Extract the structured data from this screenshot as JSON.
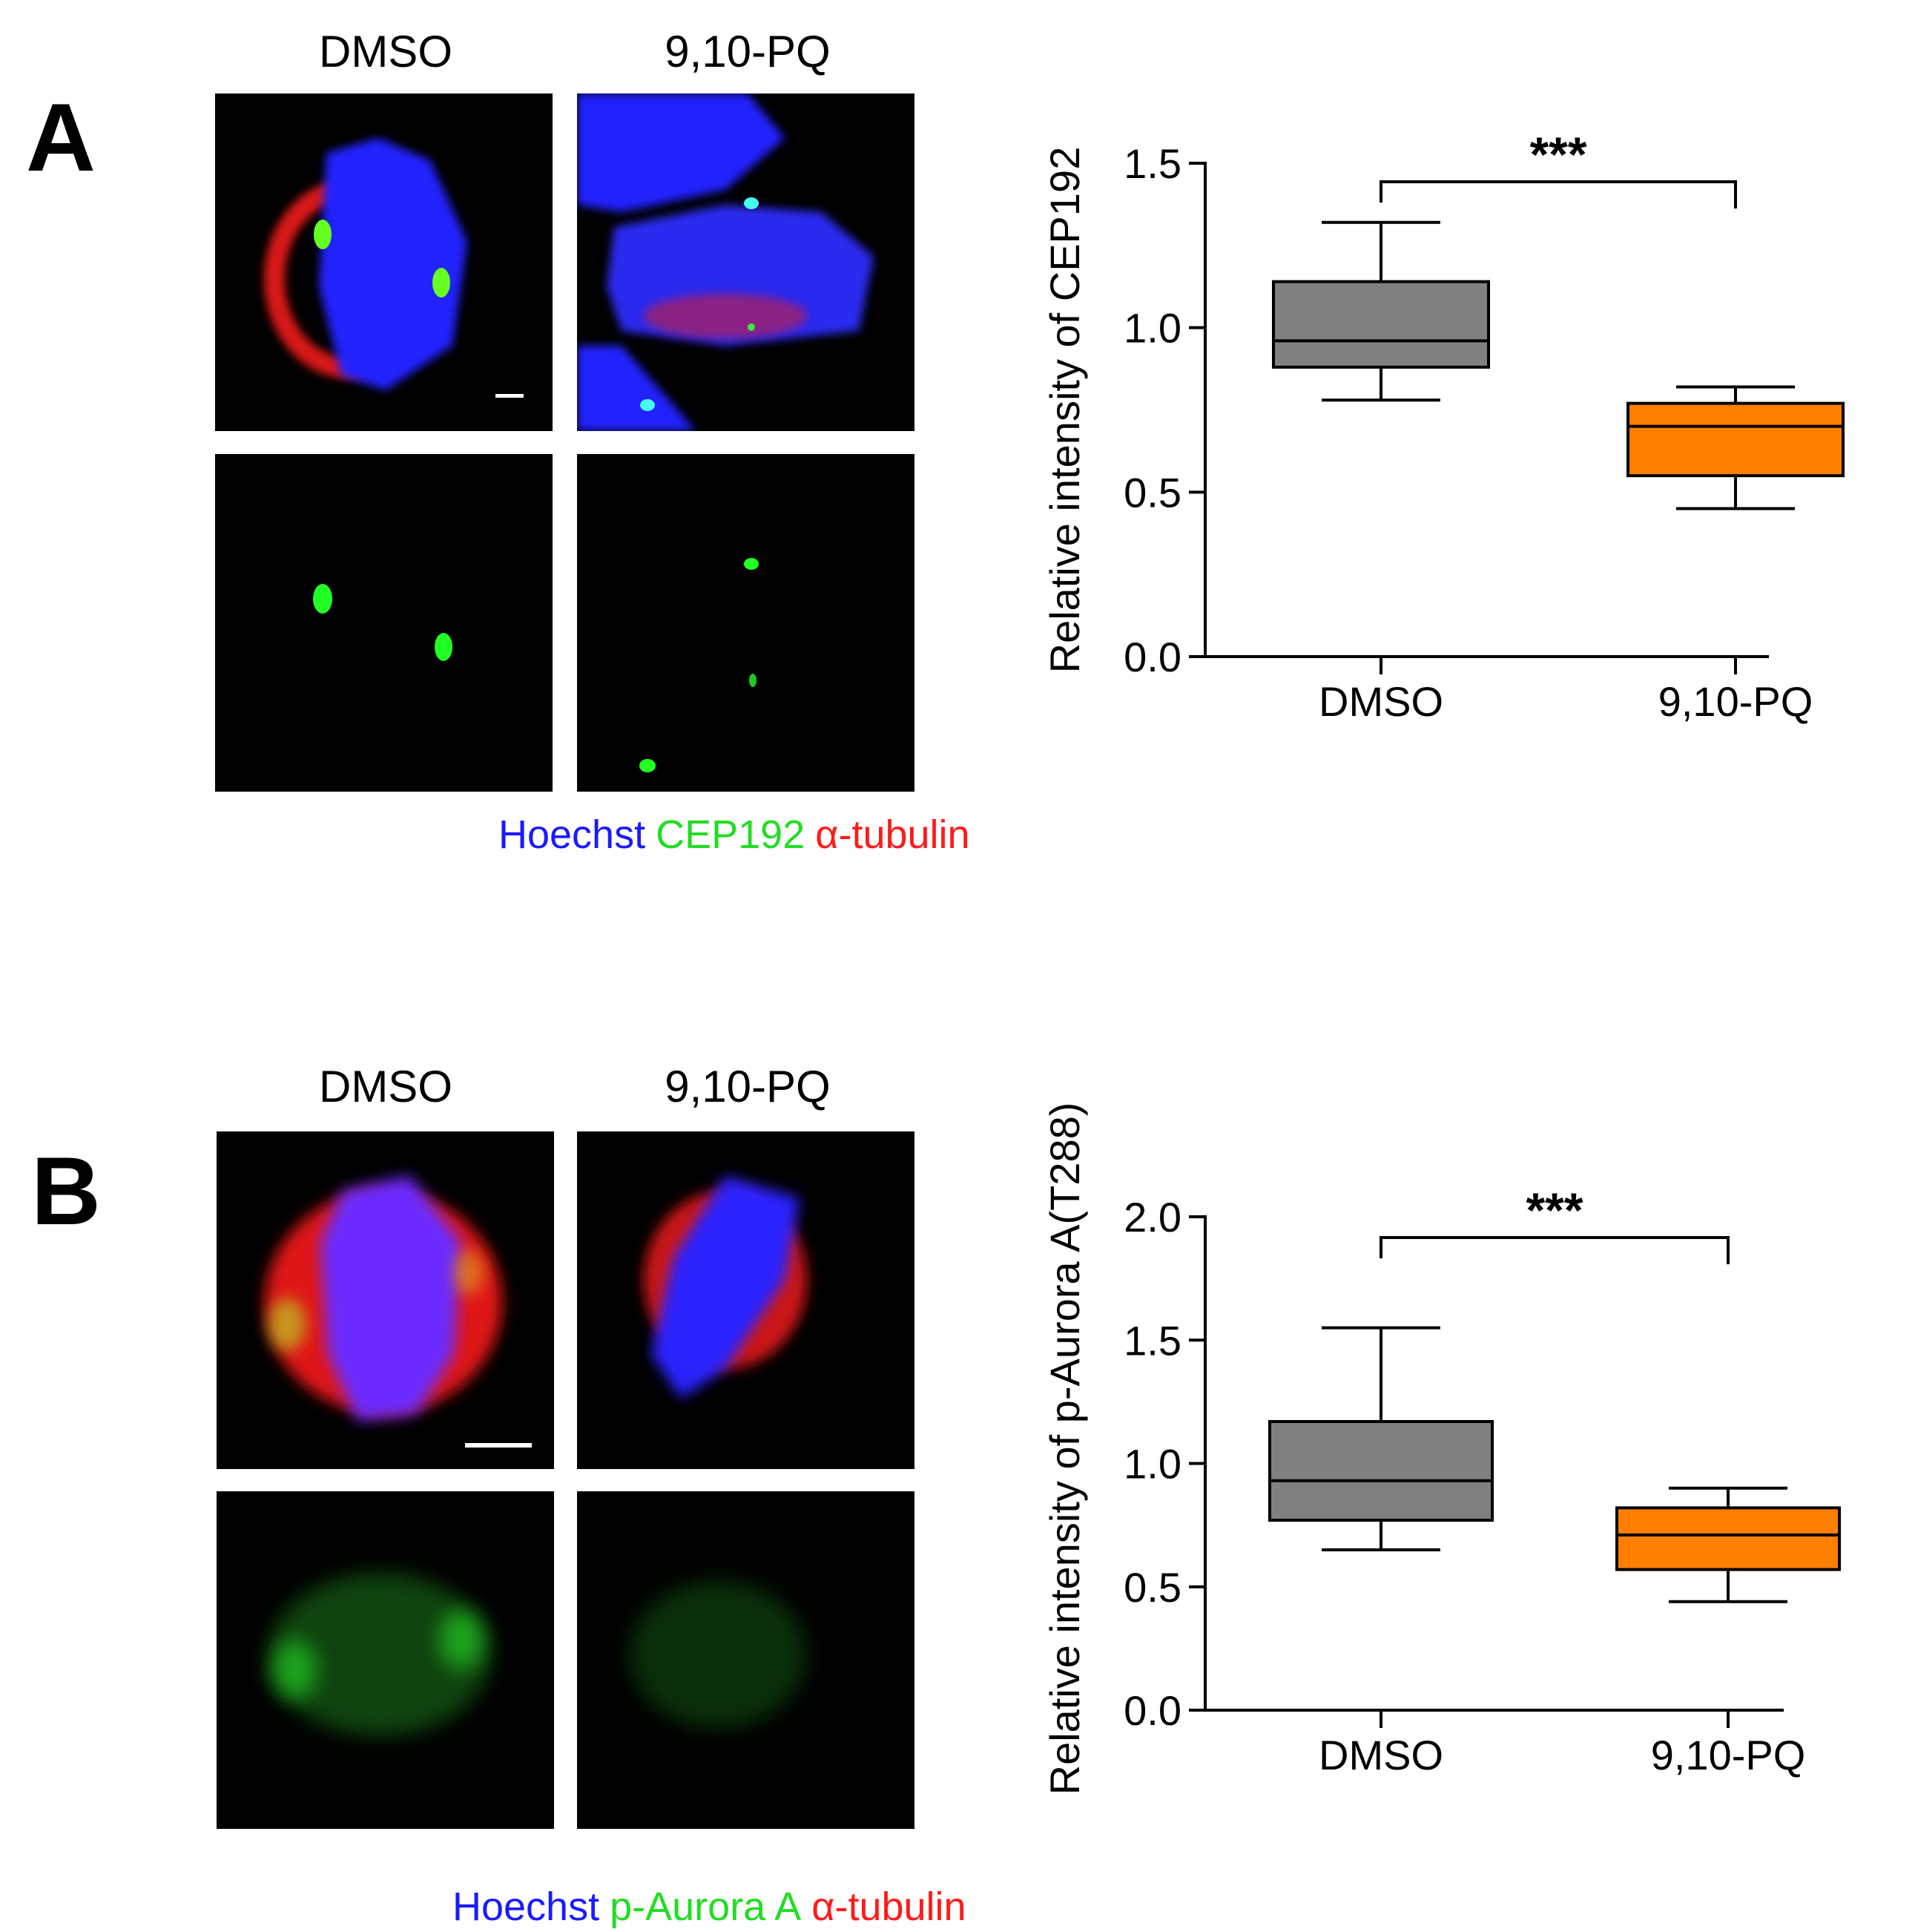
{
  "panels": [
    {
      "letter": "A",
      "columns": [
        "DMSO",
        "9,10-PQ"
      ],
      "legend": [
        {
          "text": "Hoechst",
          "color": "#1a1aff"
        },
        {
          "text": "CEP192",
          "color": "#22dd22"
        },
        {
          "text": "α-tubulin",
          "color": "#ff1a1a"
        }
      ]
    },
    {
      "letter": "B",
      "columns": [
        "DMSO",
        "9,10-PQ"
      ],
      "legend": [
        {
          "text": "Hoechst",
          "color": "#1a1aff"
        },
        {
          "text": "p-Aurora A",
          "color": "#22dd22"
        },
        {
          "text": "α-tubulin",
          "color": "#ff1a1a"
        }
      ]
    }
  ],
  "chart_data": [
    {
      "type": "box",
      "ylabel": "Relative intensity of CEP192",
      "categories": [
        "DMSO",
        "9,10-PQ"
      ],
      "ylim": [
        0.0,
        1.5
      ],
      "yticks": [
        "0.0",
        "0.5",
        "1.0",
        "1.5"
      ],
      "boxes": [
        {
          "category": "DMSO",
          "min": 0.78,
          "q1": 0.88,
          "median": 0.96,
          "q3": 1.14,
          "max": 1.32,
          "color": "#808080"
        },
        {
          "category": "9,10-PQ",
          "min": 0.45,
          "q1": 0.55,
          "median": 0.7,
          "q3": 0.77,
          "max": 0.82,
          "color": "#ff7f00"
        }
      ],
      "significance": "***"
    },
    {
      "type": "box",
      "ylabel": "Relative intensity of p-Aurora A(T288)",
      "categories": [
        "DMSO",
        "9,10-PQ"
      ],
      "ylim": [
        0.0,
        2.0
      ],
      "yticks": [
        "0.0",
        "0.5",
        "1.0",
        "1.5",
        "2.0"
      ],
      "boxes": [
        {
          "category": "DMSO",
          "min": 0.65,
          "q1": 0.77,
          "median": 0.93,
          "q3": 1.17,
          "max": 1.55,
          "color": "#808080"
        },
        {
          "category": "9,10-PQ",
          "min": 0.44,
          "q1": 0.57,
          "median": 0.71,
          "q3": 0.82,
          "max": 0.9,
          "color": "#ff7f00"
        }
      ],
      "significance": "***"
    }
  ]
}
